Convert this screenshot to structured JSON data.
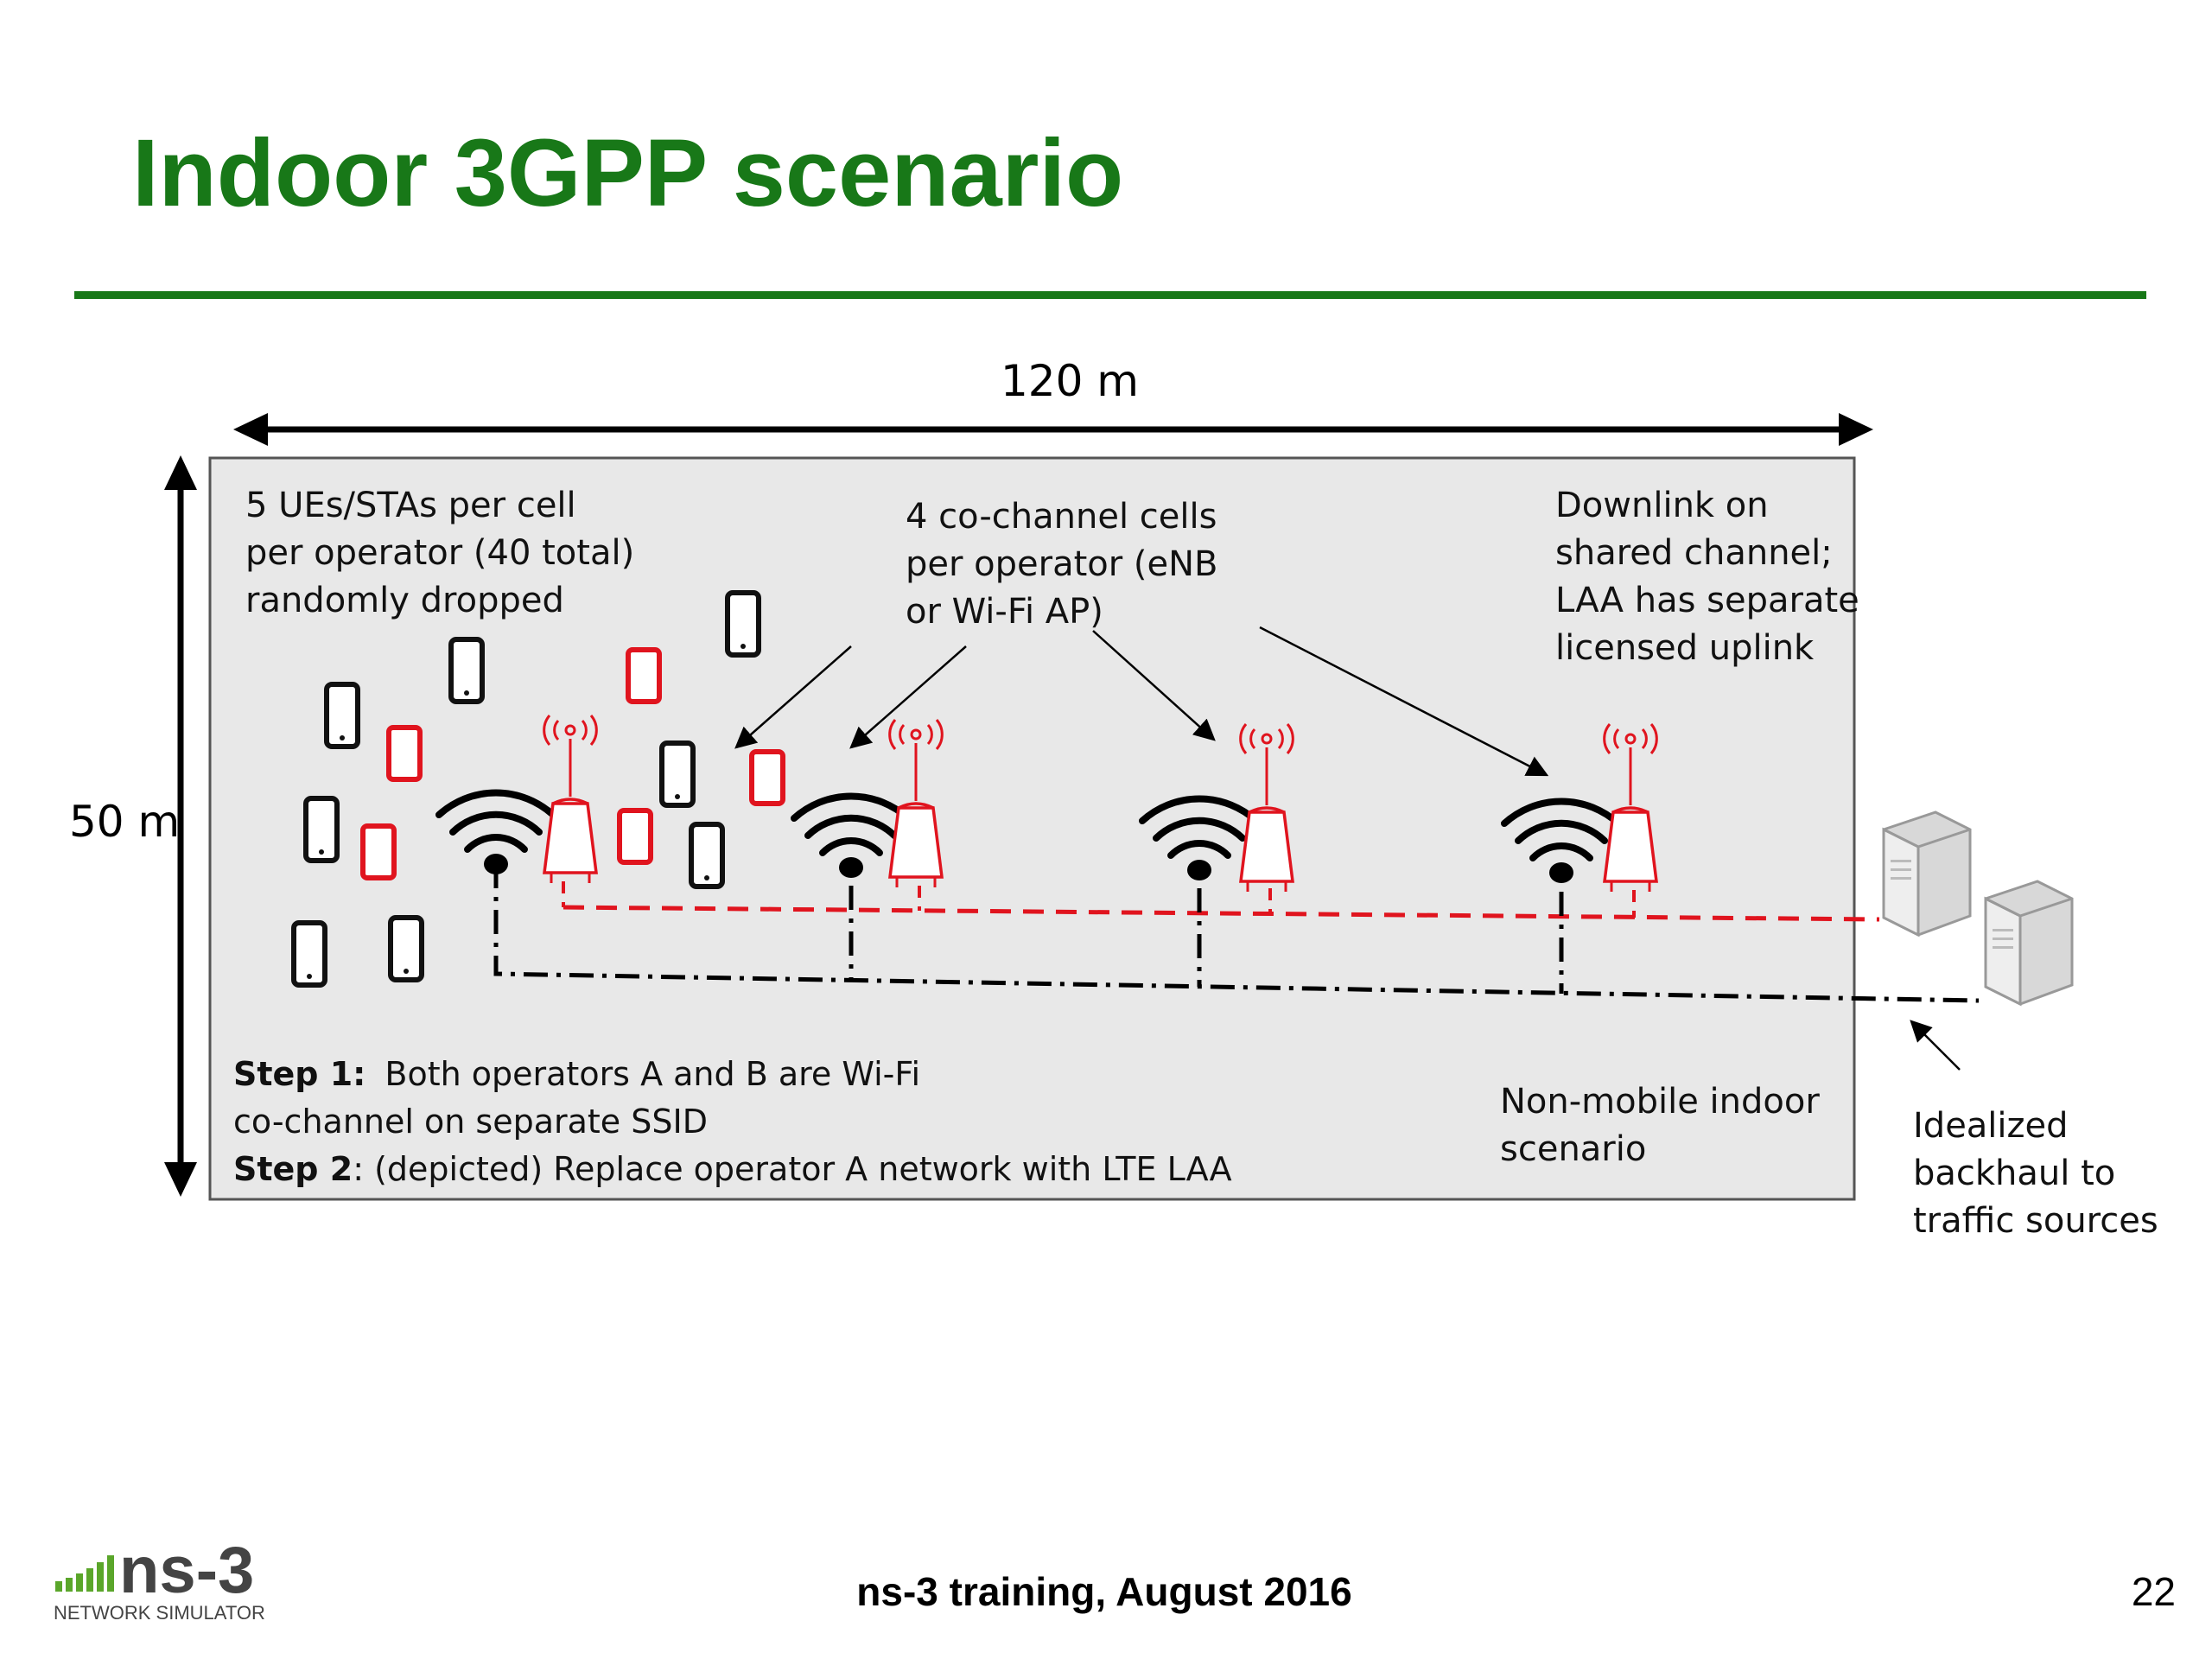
{
  "slide": {
    "title": "Indoor 3GPP scenario",
    "footer": "ns-3 training, August 2016",
    "page_number": "22",
    "colors": {
      "title_green": "#187818",
      "lte_red": "#e0141e",
      "box_gray": "#e8e8e8"
    }
  },
  "logo": {
    "wordmark": "ns-3",
    "tagline": "NETWORK SIMULATOR"
  },
  "diagram": {
    "width_label": "120 m",
    "height_label": "50 m",
    "ue_note": [
      "5 UEs/STAs per cell",
      "per operator (40 total)",
      "randomly dropped"
    ],
    "cells_note": [
      "4 co-channel cells",
      "per operator (eNB",
      "or Wi-Fi AP)"
    ],
    "downlink_note": [
      "Downlink on",
      "shared channel;",
      "LAA has separate",
      "licensed uplink"
    ],
    "step1_label": "Step 1:",
    "step1_text": "Both operators A and B are Wi-Fi",
    "step1_text2": "co-channel on separate SSID",
    "step2_label": "Step 2",
    "step2_text": ":  (depicted) Replace operator A network with LTE LAA",
    "scenario_note": [
      "Non-mobile indoor",
      "scenario"
    ],
    "backhaul_note": [
      "Idealized",
      "backhaul to",
      "traffic sources"
    ],
    "icons": [
      "smartphone-icon",
      "wifi-access-point-icon",
      "lte-enb-antenna-icon",
      "server-icon"
    ]
  }
}
